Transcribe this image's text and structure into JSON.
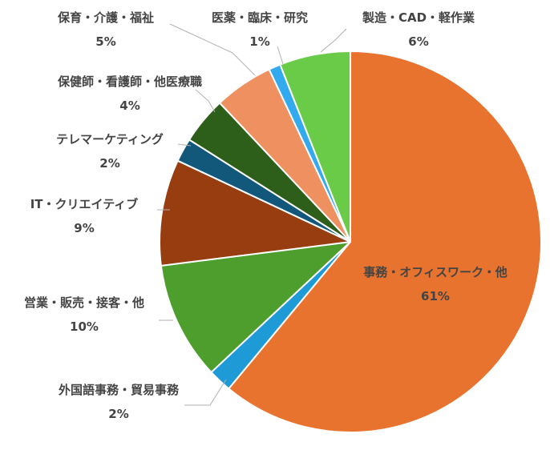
{
  "chart_data": {
    "type": "pie",
    "title": "",
    "slices": [
      {
        "label": "事務・オフィスワーク・他",
        "value": 61,
        "value_label": "61%",
        "color": "#E8732F"
      },
      {
        "label": "外国語事務・貿易事務",
        "value": 2,
        "value_label": "2%",
        "color": "#1E9AD6"
      },
      {
        "label": "営業・販売・接客・他",
        "value": 10,
        "value_label": "10%",
        "color": "#4E9E2E"
      },
      {
        "label": "IT・クリエイティブ",
        "value": 9,
        "value_label": "9%",
        "color": "#973D0F"
      },
      {
        "label": "テレマーケティング",
        "value": 2,
        "value_label": "2%",
        "color": "#12587A"
      },
      {
        "label": "保健師・看護師・他医療職",
        "value": 4,
        "value_label": "4%",
        "color": "#2E5F1A"
      },
      {
        "label": "保育・介護・福祉",
        "value": 5,
        "value_label": "5%",
        "color": "#EE9060"
      },
      {
        "label": "医薬・臨床・研究",
        "value": 1,
        "value_label": "1%",
        "color": "#33AAEE"
      },
      {
        "label": "製造・CAD・軽作業",
        "value": 6,
        "value_label": "6%",
        "color": "#6ACB48"
      }
    ],
    "start": "12 o'clock",
    "direction": "clockwise",
    "legend": "none"
  }
}
